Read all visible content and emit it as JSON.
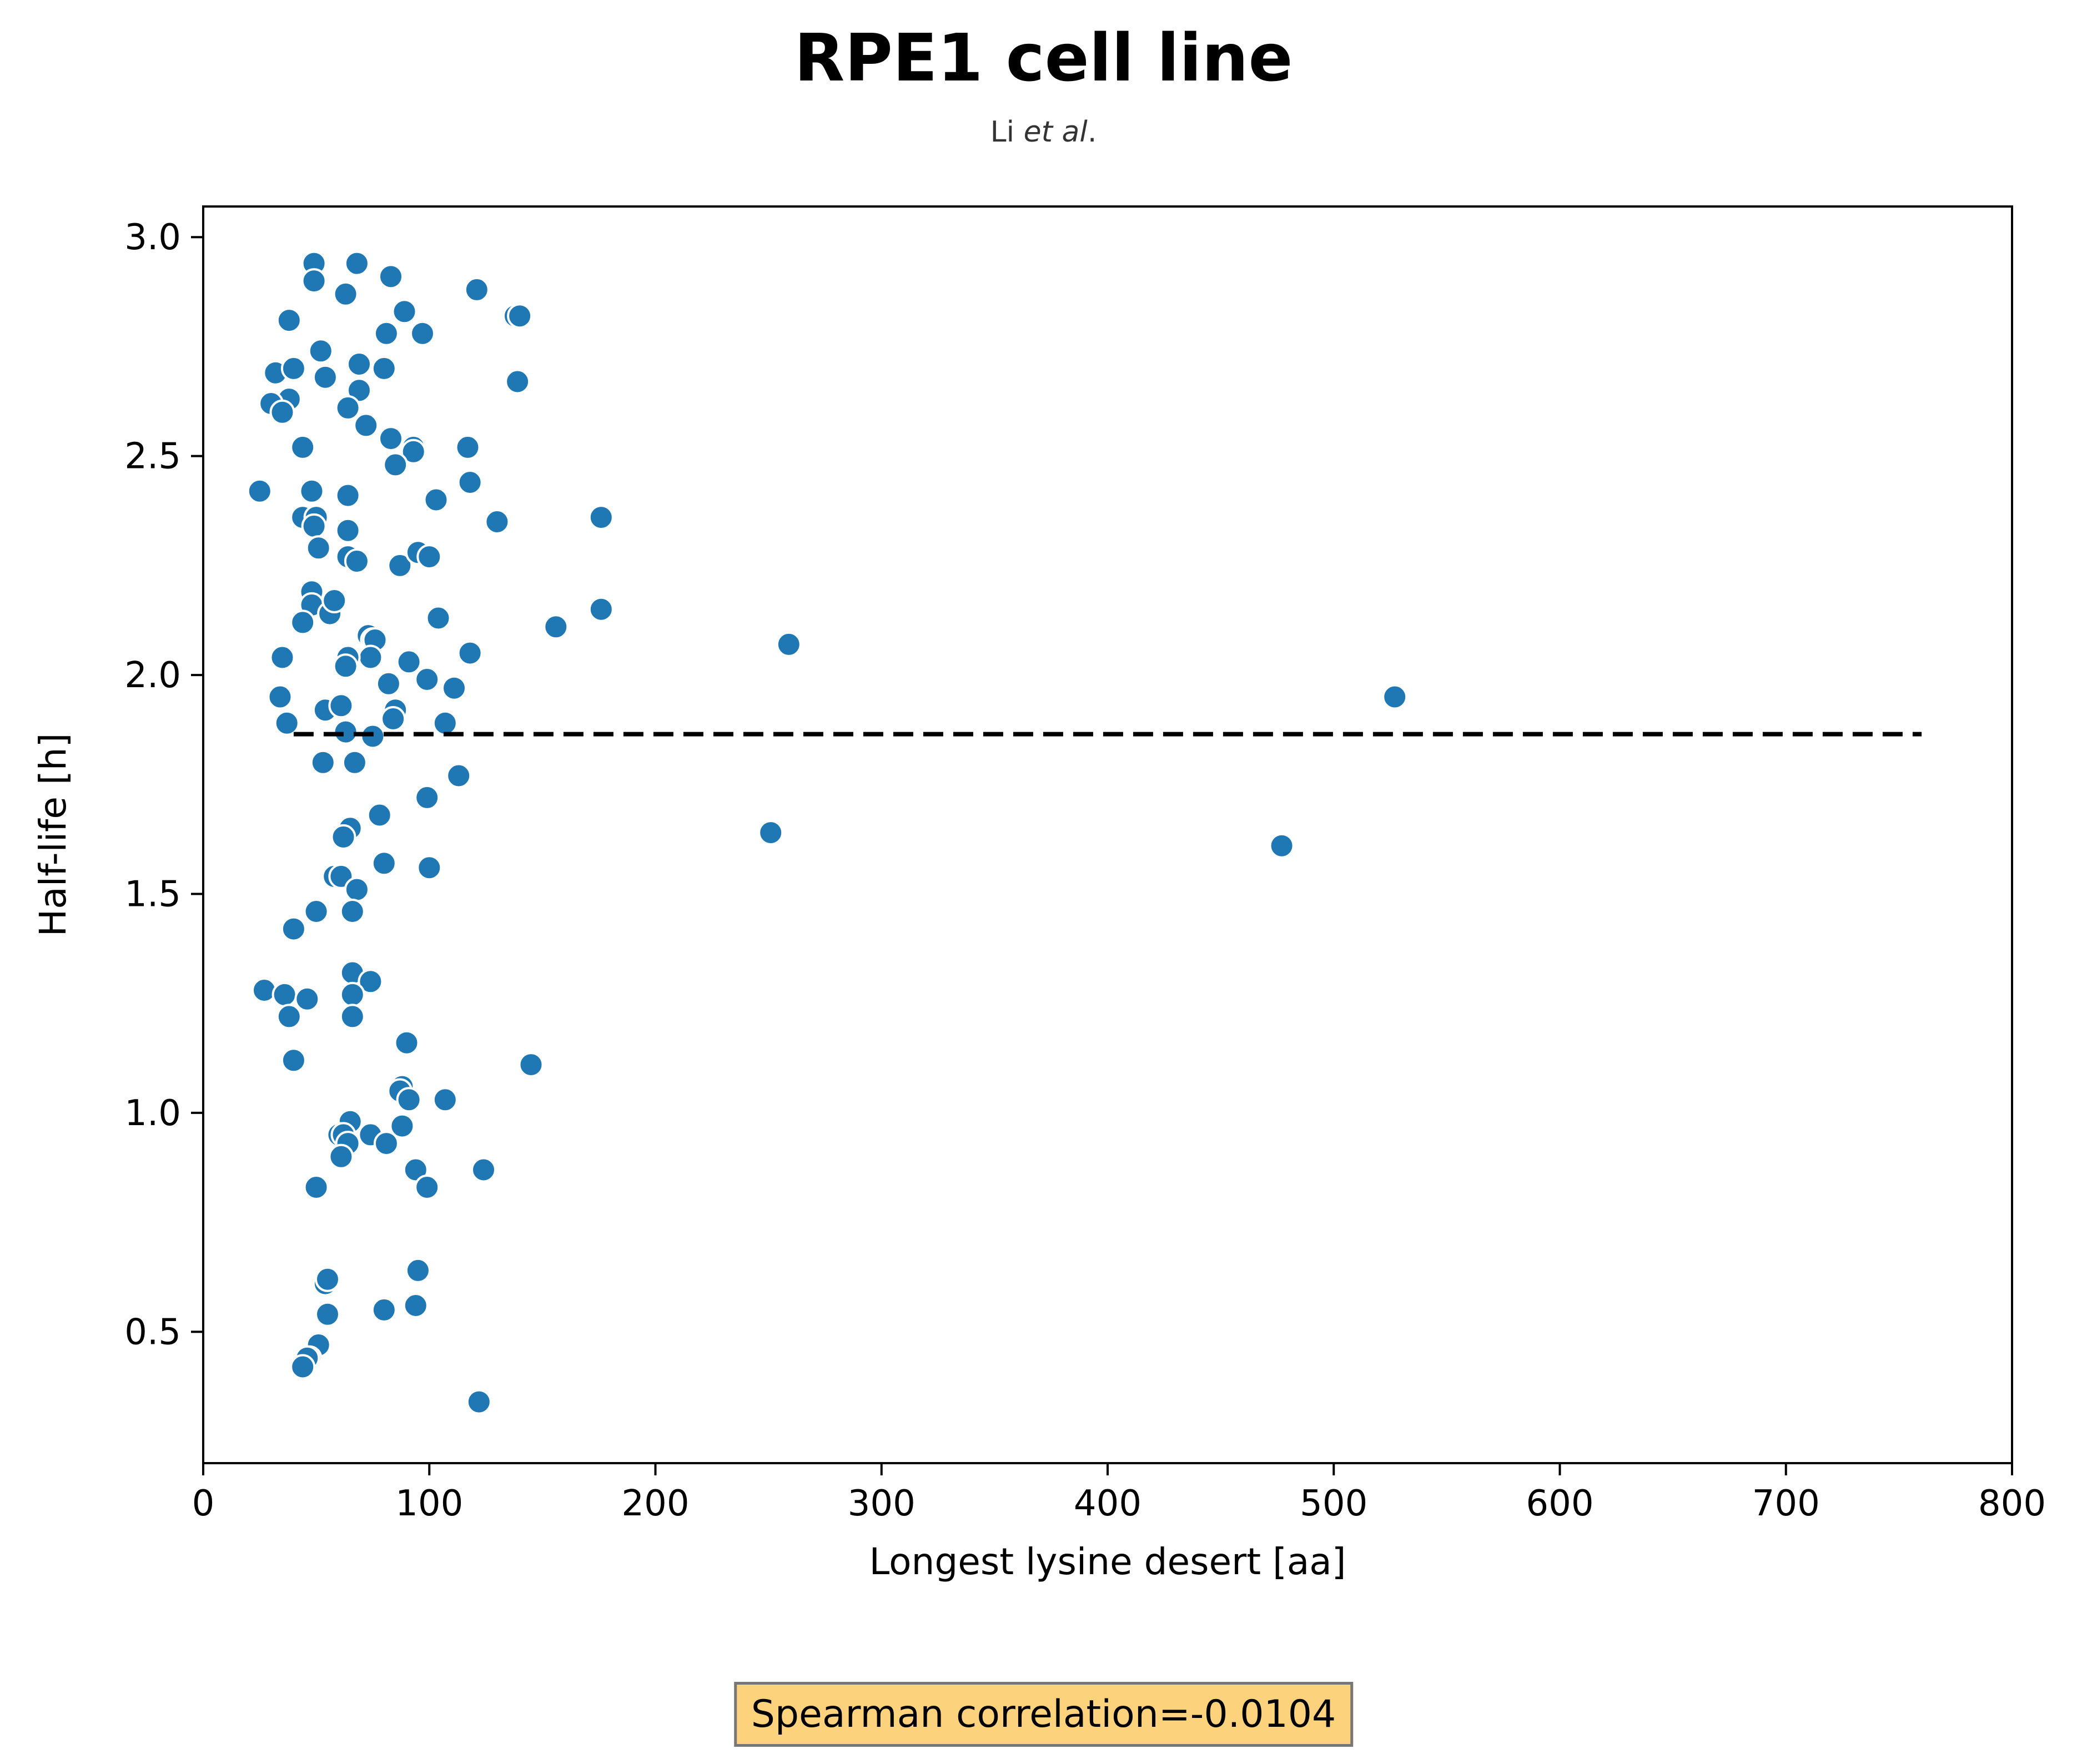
{
  "chart_data": {
    "type": "scatter",
    "title": "RPE1 cell line",
    "subtitle": {
      "prefix": "Li ",
      "italic": "et al",
      "suffix": "."
    },
    "xlabel": "Longest lysine desert [aa]",
    "ylabel": "Half-life [h]",
    "xlim": [
      0,
      800
    ],
    "ylim": [
      0.2,
      3.07
    ],
    "xticks": [
      0,
      100,
      200,
      300,
      400,
      500,
      600,
      700,
      800
    ],
    "yticks": [
      0.5,
      1.0,
      1.5,
      2.0,
      2.5,
      3.0
    ],
    "xtick_labels": [
      "0",
      "100",
      "200",
      "300",
      "400",
      "500",
      "600",
      "700",
      "800"
    ],
    "ytick_labels": [
      "0.5",
      "1.0",
      "1.5",
      "2.0",
      "2.5",
      "3.0"
    ],
    "grid": false,
    "marker_color": "#1f77b4",
    "reference_line": {
      "style": "dashed",
      "color": "#000000",
      "x": [
        40,
        760
      ],
      "y": 1.865
    },
    "annotation": "Spearman correlation=-0.0104",
    "annotation_bg": "#fdd27c",
    "points": [
      [
        49,
        2.94
      ],
      [
        68,
        2.94
      ],
      [
        49,
        2.9
      ],
      [
        83,
        2.91
      ],
      [
        63,
        2.87
      ],
      [
        121,
        2.88
      ],
      [
        38,
        2.81
      ],
      [
        89,
        2.83
      ],
      [
        138,
        2.82
      ],
      [
        140,
        2.82
      ],
      [
        81,
        2.78
      ],
      [
        97,
        2.78
      ],
      [
        52,
        2.74
      ],
      [
        32,
        2.69
      ],
      [
        40,
        2.7
      ],
      [
        69,
        2.71
      ],
      [
        80,
        2.7
      ],
      [
        54,
        2.68
      ],
      [
        139,
        2.67
      ],
      [
        69,
        2.65
      ],
      [
        38,
        2.63
      ],
      [
        30,
        2.62
      ],
      [
        35,
        2.6
      ],
      [
        64,
        2.61
      ],
      [
        72,
        2.57
      ],
      [
        83,
        2.54
      ],
      [
        44,
        2.52
      ],
      [
        93,
        2.52
      ],
      [
        93,
        2.51
      ],
      [
        117,
        2.52
      ],
      [
        85,
        2.48
      ],
      [
        25,
        2.42
      ],
      [
        48,
        2.42
      ],
      [
        64,
        2.41
      ],
      [
        118,
        2.44
      ],
      [
        103,
        2.4
      ],
      [
        44,
        2.36
      ],
      [
        50,
        2.36
      ],
      [
        49,
        2.34
      ],
      [
        64,
        2.33
      ],
      [
        130,
        2.35
      ],
      [
        176,
        2.36
      ],
      [
        51,
        2.29
      ],
      [
        64,
        2.27
      ],
      [
        68,
        2.26
      ],
      [
        87,
        2.25
      ],
      [
        95,
        2.28
      ],
      [
        100,
        2.27
      ],
      [
        48,
        2.19
      ],
      [
        48,
        2.16
      ],
      [
        56,
        2.14
      ],
      [
        58,
        2.17
      ],
      [
        44,
        2.12
      ],
      [
        104,
        2.13
      ],
      [
        156,
        2.11
      ],
      [
        176,
        2.15
      ],
      [
        73,
        2.09
      ],
      [
        75,
        2.08
      ],
      [
        76,
        2.08
      ],
      [
        74,
        2.04
      ],
      [
        64,
        2.04
      ],
      [
        63,
        2.02
      ],
      [
        118,
        2.05
      ],
      [
        259,
        2.07
      ],
      [
        35,
        2.04
      ],
      [
        91,
        2.03
      ],
      [
        82,
        1.98
      ],
      [
        99,
        1.99
      ],
      [
        111,
        1.97
      ],
      [
        34,
        1.95
      ],
      [
        54,
        1.92
      ],
      [
        61,
        1.93
      ],
      [
        85,
        1.92
      ],
      [
        84,
        1.9
      ],
      [
        527,
        1.95
      ],
      [
        37,
        1.89
      ],
      [
        63,
        1.87
      ],
      [
        75,
        1.86
      ],
      [
        107,
        1.89
      ],
      [
        53,
        1.8
      ],
      [
        67,
        1.8
      ],
      [
        113,
        1.77
      ],
      [
        99,
        1.72
      ],
      [
        78,
        1.68
      ],
      [
        65,
        1.65
      ],
      [
        62,
        1.63
      ],
      [
        251,
        1.64
      ],
      [
        477,
        1.61
      ],
      [
        80,
        1.57
      ],
      [
        100,
        1.56
      ],
      [
        58,
        1.54
      ],
      [
        61,
        1.54
      ],
      [
        68,
        1.51
      ],
      [
        50,
        1.46
      ],
      [
        66,
        1.46
      ],
      [
        40,
        1.42
      ],
      [
        66,
        1.32
      ],
      [
        74,
        1.3
      ],
      [
        27,
        1.28
      ],
      [
        36,
        1.27
      ],
      [
        66,
        1.27
      ],
      [
        46,
        1.26
      ],
      [
        38,
        1.22
      ],
      [
        66,
        1.22
      ],
      [
        90,
        1.16
      ],
      [
        145,
        1.11
      ],
      [
        40,
        1.12
      ],
      [
        88,
        1.06
      ],
      [
        87,
        1.05
      ],
      [
        91,
        1.03
      ],
      [
        107,
        1.03
      ],
      [
        65,
        0.98
      ],
      [
        88,
        0.97
      ],
      [
        60,
        0.95
      ],
      [
        62,
        0.95
      ],
      [
        74,
        0.95
      ],
      [
        64,
        0.93
      ],
      [
        81,
        0.93
      ],
      [
        61,
        0.9
      ],
      [
        94,
        0.87
      ],
      [
        124,
        0.87
      ],
      [
        50,
        0.83
      ],
      [
        99,
        0.83
      ],
      [
        95,
        0.64
      ],
      [
        54,
        0.61
      ],
      [
        55,
        0.62
      ],
      [
        55,
        0.54
      ],
      [
        80,
        0.55
      ],
      [
        94,
        0.56
      ],
      [
        51,
        0.47
      ],
      [
        47,
        0.44
      ],
      [
        46,
        0.44
      ],
      [
        44,
        0.42
      ],
      [
        122,
        0.34
      ]
    ]
  }
}
